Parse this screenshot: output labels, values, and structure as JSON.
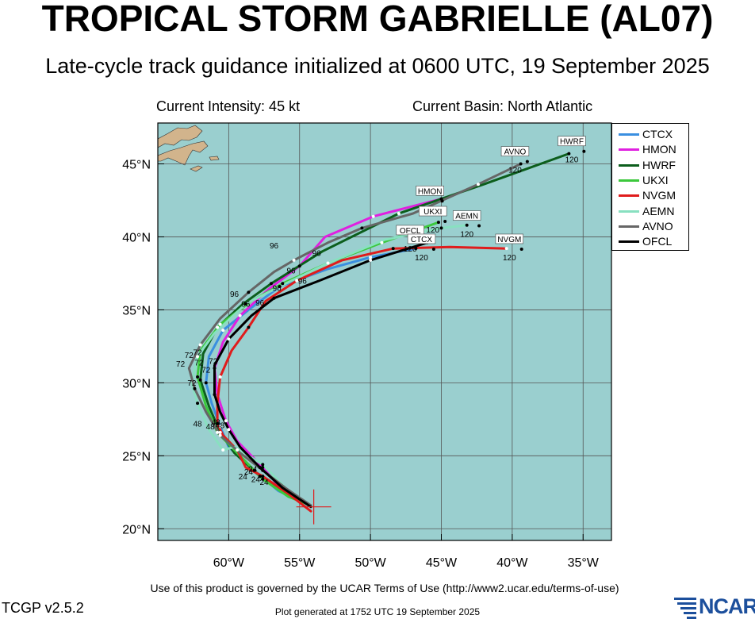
{
  "header": {
    "title": "TROPICAL STORM GABRIELLE (AL07)",
    "subtitle": "Late-cycle track guidance initialized at 0600 UTC, 19 September 2025",
    "current_intensity": "Current Intensity: 45 kt",
    "current_basin": "Current Basin: North Atlantic"
  },
  "map": {
    "extent": {
      "lon": [
        -65.0,
        -33.0
      ],
      "lat": [
        19.2,
        47.8
      ]
    },
    "ocean_color": "#9acfcf",
    "land_color": "#d2b48c",
    "lon_ticks": [
      {
        "value": -60,
        "label": "60°W"
      },
      {
        "value": -55,
        "label": "55°W"
      },
      {
        "value": -50,
        "label": "50°W"
      },
      {
        "value": -45,
        "label": "45°W"
      },
      {
        "value": -40,
        "label": "40°W"
      },
      {
        "value": -35,
        "label": "35°W"
      }
    ],
    "lat_ticks": [
      {
        "value": 20,
        "label": "20°N"
      },
      {
        "value": 25,
        "label": "25°N"
      },
      {
        "value": 30,
        "label": "30°N"
      },
      {
        "value": 35,
        "label": "35°N"
      },
      {
        "value": 40,
        "label": "40°N"
      },
      {
        "value": 45,
        "label": "45°N"
      }
    ],
    "current_position": {
      "lon": -54.0,
      "lat": 21.5
    }
  },
  "models": [
    {
      "name": "CTCX",
      "color": "#3a8fe0",
      "end_label": "CTCX",
      "end_hour": "120",
      "track": [
        [
          -54.2,
          21.6
        ],
        [
          -56.5,
          22.6
        ],
        [
          -58.2,
          24.0
        ],
        [
          -60.0,
          25.6
        ],
        [
          -60.6,
          27.0
        ],
        [
          -61.2,
          28.6
        ],
        [
          -61.6,
          30.0
        ],
        [
          -61.4,
          31.8
        ],
        [
          -60.4,
          33.6
        ],
        [
          -58.6,
          35.0
        ],
        [
          -56.4,
          36.6
        ],
        [
          -53.0,
          37.8
        ],
        [
          -50.0,
          38.6
        ],
        [
          -46.8,
          39.2
        ]
      ]
    },
    {
      "name": "HMON",
      "color": "#e020e0",
      "end_label": "HMON",
      "end_hour": "120",
      "track": [
        [
          -54.2,
          21.6
        ],
        [
          -56.0,
          22.4
        ],
        [
          -57.6,
          24.2
        ],
        [
          -59.4,
          26.0
        ],
        [
          -60.2,
          27.4
        ],
        [
          -60.8,
          29.2
        ],
        [
          -61.0,
          31.0
        ],
        [
          -60.4,
          32.8
        ],
        [
          -59.2,
          34.6
        ],
        [
          -57.2,
          36.4
        ],
        [
          -55.0,
          38.0
        ],
        [
          -53.2,
          40.0
        ],
        [
          -49.8,
          41.4
        ],
        [
          -45.0,
          42.6
        ]
      ]
    },
    {
      "name": "HWRF",
      "color": "#0c5e1c",
      "end_label": "HWRF",
      "end_hour": "120",
      "track": [
        [
          -54.2,
          21.6
        ],
        [
          -56.0,
          22.4
        ],
        [
          -57.8,
          23.6
        ],
        [
          -59.6,
          25.2
        ],
        [
          -60.6,
          26.6
        ],
        [
          -61.4,
          28.4
        ],
        [
          -62.0,
          30.2
        ],
        [
          -61.8,
          32.0
        ],
        [
          -60.8,
          33.8
        ],
        [
          -59.0,
          35.4
        ],
        [
          -57.0,
          36.8
        ],
        [
          -53.4,
          39.0
        ],
        [
          -48.0,
          41.6
        ],
        [
          -42.0,
          43.6
        ],
        [
          -36.0,
          45.7
        ]
      ]
    },
    {
      "name": "UKXI",
      "color": "#3cc83c",
      "end_label": "UKXI",
      "end_hour": "120",
      "track": [
        [
          -54.2,
          21.6
        ],
        [
          -55.8,
          22.2
        ],
        [
          -57.6,
          23.4
        ],
        [
          -59.4,
          25.2
        ],
        [
          -60.8,
          26.6
        ],
        [
          -61.6,
          28.4
        ],
        [
          -62.2,
          30.4
        ],
        [
          -62.0,
          32.2
        ],
        [
          -60.6,
          34.0
        ],
        [
          -58.4,
          35.6
        ],
        [
          -56.2,
          36.8
        ],
        [
          -53.0,
          38.2
        ],
        [
          -49.2,
          39.6
        ],
        [
          -45.2,
          41.0
        ]
      ]
    },
    {
      "name": "NVGM",
      "color": "#e01c1c",
      "end_label": "NVGM",
      "end_hour": "120",
      "track": [
        [
          -54.2,
          21.2
        ],
        [
          -55.8,
          22.4
        ],
        [
          -57.6,
          23.6
        ],
        [
          -58.8,
          24.2
        ],
        [
          -59.4,
          25.4
        ],
        [
          -60.4,
          26.4
        ],
        [
          -60.8,
          27.2
        ],
        [
          -60.8,
          28.6
        ],
        [
          -60.6,
          30.4
        ],
        [
          -59.8,
          32.2
        ],
        [
          -58.6,
          33.8
        ],
        [
          -57.4,
          35.6
        ],
        [
          -55.2,
          37.0
        ],
        [
          -52.0,
          38.4
        ],
        [
          -48.4,
          39.2
        ],
        [
          -44.4,
          39.3
        ],
        [
          -40.4,
          39.2
        ]
      ]
    },
    {
      "name": "AEMN",
      "color": "#88e0c0",
      "end_label": "AEMN",
      "end_hour": "120",
      "track": [
        [
          -54.2,
          21.6
        ],
        [
          -56.0,
          22.8
        ],
        [
          -57.6,
          24.4
        ],
        [
          -59.6,
          25.6
        ],
        [
          -60.4,
          25.4
        ],
        [
          -61.4,
          26.8
        ],
        [
          -62.2,
          28.6
        ],
        [
          -62.6,
          30.0
        ],
        [
          -62.2,
          31.8
        ],
        [
          -61.0,
          33.4
        ],
        [
          -58.8,
          35.4
        ],
        [
          -56.4,
          36.6
        ],
        [
          -53.0,
          38.2
        ],
        [
          -49.0,
          39.8
        ],
        [
          -45.0,
          40.6
        ],
        [
          -43.2,
          40.8
        ]
      ]
    },
    {
      "name": "AVNO",
      "color": "#666666",
      "end_label": "AVNO",
      "end_hour": "120",
      "track": [
        [
          -54.2,
          21.6
        ],
        [
          -56.0,
          22.8
        ],
        [
          -57.6,
          24.0
        ],
        [
          -59.2,
          25.2
        ],
        [
          -60.6,
          26.4
        ],
        [
          -61.6,
          28.0
        ],
        [
          -62.4,
          29.6
        ],
        [
          -62.8,
          31.0
        ],
        [
          -62.0,
          32.6
        ],
        [
          -60.6,
          34.4
        ],
        [
          -58.6,
          36.2
        ],
        [
          -56.8,
          37.6
        ],
        [
          -55.4,
          38.4
        ],
        [
          -53.0,
          39.6
        ],
        [
          -50.6,
          40.6
        ],
        [
          -47.0,
          41.6
        ],
        [
          -42.4,
          43.6
        ],
        [
          -39.4,
          45.0
        ]
      ]
    },
    {
      "name": "OFCL",
      "color": "#000000",
      "end_label": "OFCL",
      "end_hour": "120",
      "track": [
        [
          -54.2,
          21.5
        ],
        [
          -56.2,
          22.8
        ],
        [
          -57.8,
          24.2
        ],
        [
          -59.2,
          25.6
        ],
        [
          -60.0,
          26.8
        ],
        [
          -60.6,
          28.0
        ],
        [
          -61.0,
          29.2
        ],
        [
          -61.0,
          31.2
        ],
        [
          -60.0,
          33.0
        ],
        [
          -58.4,
          34.6
        ],
        [
          -56.8,
          35.8
        ],
        [
          -53.6,
          37.0
        ],
        [
          -50.0,
          38.4
        ],
        [
          -46.0,
          39.6
        ]
      ]
    }
  ],
  "end_labels": [
    {
      "text": "HWRF",
      "lon": -35.8,
      "lat": 46.4,
      "hour": "120"
    },
    {
      "text": "AVNO",
      "lon": -39.8,
      "lat": 45.7,
      "hour": "120"
    },
    {
      "text": "HMON",
      "lon": -45.8,
      "lat": 43.0,
      "hour": "120"
    },
    {
      "text": "UKXI",
      "lon": -45.6,
      "lat": 41.6,
      "hour": "120"
    },
    {
      "text": "AEMN",
      "lon": -43.2,
      "lat": 41.3,
      "hour": "120"
    },
    {
      "text": "OFCL",
      "lon": -47.2,
      "lat": 40.3,
      "hour": "120"
    },
    {
      "text": "CTCX",
      "lon": -46.4,
      "lat": 39.7,
      "hour": "120"
    },
    {
      "text": "NVGM",
      "lon": -40.2,
      "lat": 39.7,
      "hour": "120"
    }
  ],
  "hour_labels": [
    {
      "text": "96",
      "lon": -56.8,
      "lat": 39.2
    },
    {
      "text": "96",
      "lon": -53.8,
      "lat": 38.7
    },
    {
      "text": "96",
      "lon": -55.6,
      "lat": 37.5
    },
    {
      "text": "96",
      "lon": -54.8,
      "lat": 36.8
    },
    {
      "text": "96",
      "lon": -56.6,
      "lat": 36.3
    },
    {
      "text": "96",
      "lon": -59.6,
      "lat": 35.9
    },
    {
      "text": "96",
      "lon": -58.8,
      "lat": 35.2
    },
    {
      "text": "96",
      "lon": -57.8,
      "lat": 35.3
    },
    {
      "text": "72",
      "lon": -62.8,
      "lat": 31.7
    },
    {
      "text": "72",
      "lon": -62.2,
      "lat": 31.9
    },
    {
      "text": "72",
      "lon": -63.4,
      "lat": 31.1
    },
    {
      "text": "72",
      "lon": -62.1,
      "lat": 31.2
    },
    {
      "text": "72",
      "lon": -61.6,
      "lat": 30.7
    },
    {
      "text": "72",
      "lon": -61.1,
      "lat": 31.3
    },
    {
      "text": "72",
      "lon": -62.6,
      "lat": 29.8
    },
    {
      "text": "48",
      "lon": -62.2,
      "lat": 27.0
    },
    {
      "text": "48",
      "lon": -61.3,
      "lat": 26.8
    },
    {
      "text": "48",
      "lon": -60.6,
      "lat": 26.9
    },
    {
      "text": "48",
      "lon": -60.9,
      "lat": 27.1
    },
    {
      "text": "24",
      "lon": -59.0,
      "lat": 23.4
    },
    {
      "text": "24",
      "lon": -58.6,
      "lat": 23.7
    },
    {
      "text": "24",
      "lon": -58.1,
      "lat": 23.2
    },
    {
      "text": "24",
      "lon": -57.5,
      "lat": 23.0
    },
    {
      "text": "24",
      "lon": -58.3,
      "lat": 23.9
    }
  ],
  "legend": {
    "items": [
      {
        "label": "CTCX",
        "color": "#3a8fe0"
      },
      {
        "label": "HMON",
        "color": "#e020e0"
      },
      {
        "label": "HWRF",
        "color": "#0c5e1c"
      },
      {
        "label": "UKXI",
        "color": "#3cc83c"
      },
      {
        "label": "NVGM",
        "color": "#e01c1c"
      },
      {
        "label": "AEMN",
        "color": "#88e0c0"
      },
      {
        "label": "AVNO",
        "color": "#666666"
      },
      {
        "label": "OFCL",
        "color": "#000000"
      }
    ]
  },
  "footer": {
    "terms": "Use of this product is governed by the UCAR Terms of Use (http://www2.ucar.edu/terms-of-use)",
    "version": "TCGP v2.5.2",
    "generated": "Plot generated at 1752 UTC   19 September 2025",
    "logo_text": "NCAR"
  }
}
